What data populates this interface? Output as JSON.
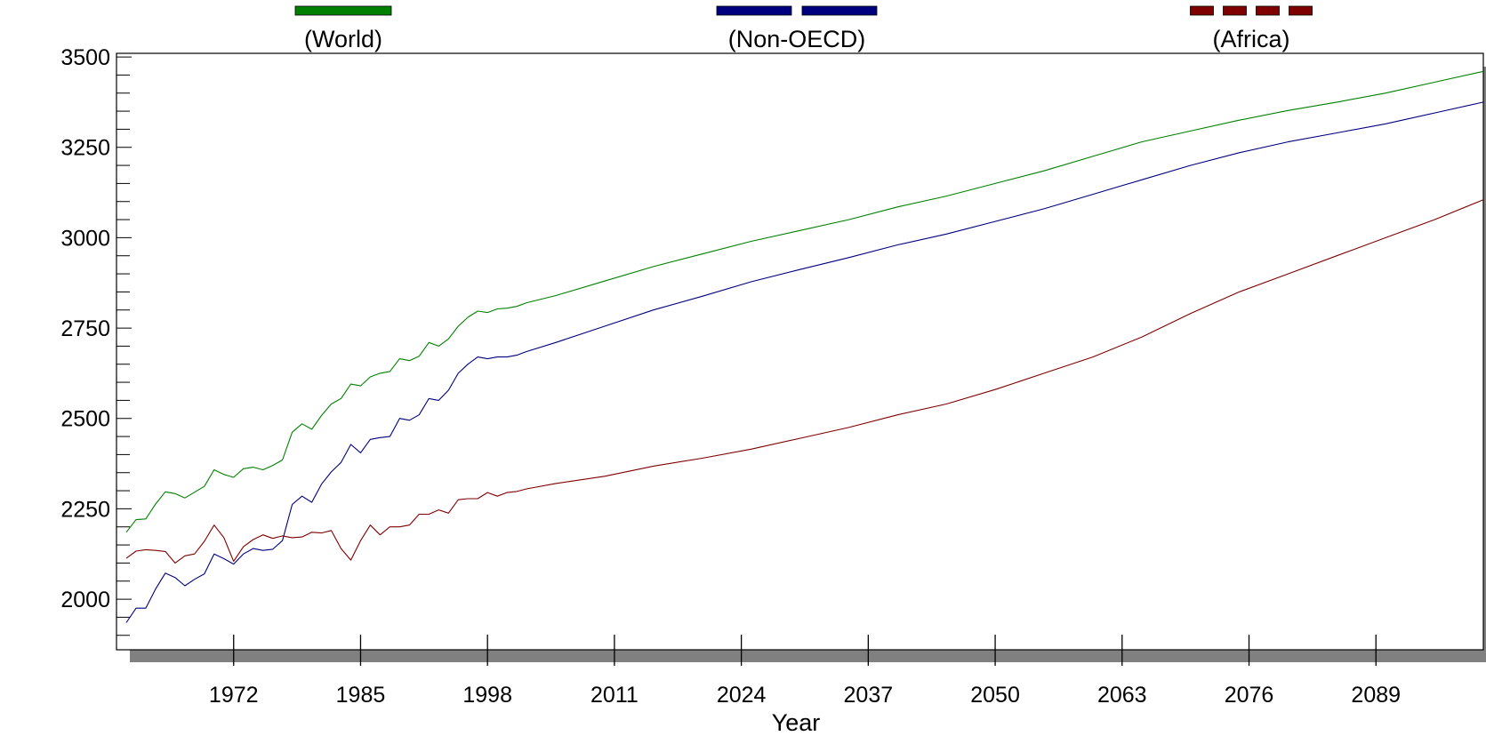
{
  "chart_data": {
    "type": "line",
    "title": "",
    "xlabel": "Year",
    "ylabel": "",
    "xlim": [
      1960,
      2100
    ],
    "ylim": [
      1860,
      3510
    ],
    "x_ticks": [
      1972,
      1985,
      1998,
      2011,
      2024,
      2037,
      2050,
      2063,
      2076,
      2089
    ],
    "y_ticks": [
      2000,
      2250,
      2500,
      2750,
      3000,
      3250,
      3500
    ],
    "grid": false,
    "legend_placement": "top",
    "series": [
      {
        "name": "(World)",
        "color": "#008000",
        "legend_style": "solid",
        "x": [
          1961,
          1962,
          1963,
          1964,
          1965,
          1966,
          1967,
          1968,
          1969,
          1970,
          1971,
          1972,
          1973,
          1974,
          1975,
          1976,
          1977,
          1978,
          1979,
          1980,
          1981,
          1982,
          1983,
          1984,
          1985,
          1986,
          1987,
          1988,
          1989,
          1990,
          1991,
          1992,
          1993,
          1994,
          1995,
          1996,
          1997,
          1998,
          1999,
          2000,
          2001,
          2002,
          2005,
          2010,
          2015,
          2020,
          2025,
          2030,
          2035,
          2040,
          2045,
          2050,
          2055,
          2060,
          2065,
          2070,
          2075,
          2080,
          2085,
          2090,
          2095,
          2100
        ],
        "y": [
          2185,
          2220,
          2222,
          2263,
          2297,
          2292,
          2280,
          2296,
          2312,
          2358,
          2345,
          2337,
          2361,
          2365,
          2358,
          2370,
          2385,
          2462,
          2485,
          2470,
          2508,
          2540,
          2555,
          2595,
          2590,
          2615,
          2625,
          2630,
          2665,
          2660,
          2672,
          2710,
          2700,
          2720,
          2755,
          2780,
          2797,
          2793,
          2803,
          2805,
          2810,
          2820,
          2840,
          2880,
          2920,
          2955,
          2990,
          3020,
          3050,
          3085,
          3115,
          3150,
          3185,
          3225,
          3265,
          3295,
          3325,
          3352,
          3375,
          3400,
          3430,
          3460
        ]
      },
      {
        "name": "(Non-OECD)",
        "color": "#00007f",
        "legend_style": "dashed",
        "x": [
          1961,
          1962,
          1963,
          1964,
          1965,
          1966,
          1967,
          1968,
          1969,
          1970,
          1971,
          1972,
          1973,
          1974,
          1975,
          1976,
          1977,
          1978,
          1979,
          1980,
          1981,
          1982,
          1983,
          1984,
          1985,
          1986,
          1987,
          1988,
          1989,
          1990,
          1991,
          1992,
          1993,
          1994,
          1995,
          1996,
          1997,
          1998,
          1999,
          2000,
          2001,
          2002,
          2005,
          2010,
          2015,
          2020,
          2025,
          2030,
          2035,
          2040,
          2045,
          2050,
          2055,
          2060,
          2065,
          2070,
          2075,
          2080,
          2085,
          2090,
          2095,
          2100
        ],
        "y": [
          1935,
          1975,
          1975,
          2028,
          2072,
          2060,
          2037,
          2055,
          2070,
          2125,
          2112,
          2097,
          2125,
          2140,
          2135,
          2138,
          2162,
          2262,
          2285,
          2268,
          2318,
          2352,
          2378,
          2428,
          2405,
          2442,
          2447,
          2450,
          2500,
          2495,
          2510,
          2555,
          2550,
          2578,
          2625,
          2650,
          2670,
          2665,
          2670,
          2670,
          2675,
          2685,
          2710,
          2755,
          2800,
          2838,
          2878,
          2912,
          2945,
          2980,
          3010,
          3045,
          3080,
          3120,
          3160,
          3200,
          3235,
          3265,
          3290,
          3315,
          3345,
          3375
        ]
      },
      {
        "name": "(Africa)",
        "color": "#7f0000",
        "legend_style": "dotted",
        "x": [
          1961,
          1962,
          1963,
          1964,
          1965,
          1966,
          1967,
          1968,
          1969,
          1970,
          1971,
          1972,
          1973,
          1974,
          1975,
          1976,
          1977,
          1978,
          1979,
          1980,
          1981,
          1982,
          1983,
          1984,
          1985,
          1986,
          1987,
          1988,
          1989,
          1990,
          1991,
          1992,
          1993,
          1994,
          1995,
          1996,
          1997,
          1998,
          1999,
          2000,
          2001,
          2002,
          2005,
          2010,
          2015,
          2020,
          2025,
          2030,
          2035,
          2040,
          2045,
          2050,
          2055,
          2060,
          2065,
          2070,
          2075,
          2080,
          2085,
          2090,
          2095,
          2100
        ],
        "y": [
          2113,
          2133,
          2137,
          2135,
          2132,
          2100,
          2120,
          2125,
          2160,
          2205,
          2170,
          2105,
          2145,
          2165,
          2178,
          2168,
          2175,
          2170,
          2172,
          2185,
          2183,
          2190,
          2140,
          2108,
          2162,
          2205,
          2178,
          2200,
          2200,
          2205,
          2235,
          2235,
          2247,
          2238,
          2275,
          2278,
          2278,
          2295,
          2285,
          2295,
          2298,
          2305,
          2320,
          2340,
          2368,
          2390,
          2415,
          2445,
          2475,
          2510,
          2540,
          2580,
          2625,
          2670,
          2725,
          2790,
          2850,
          2900,
          2950,
          3000,
          3050,
          3105
        ]
      }
    ]
  }
}
